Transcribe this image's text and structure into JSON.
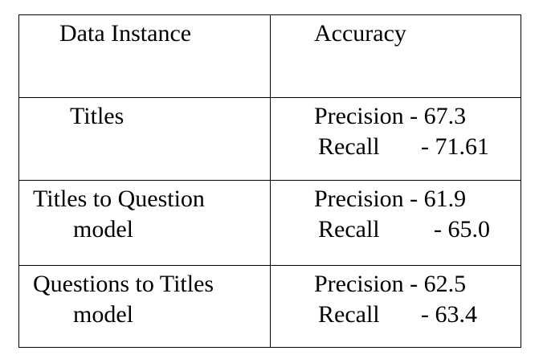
{
  "table": {
    "headers": [
      "Data Instance",
      "Accuracy"
    ],
    "rows": [
      {
        "instance_lines": [
          "Titles"
        ],
        "precision_label": "Precision - 67.3",
        "recall_label": "Recall",
        "recall_value": "- 71.61"
      },
      {
        "instance_lines": [
          "Titles to Question",
          "model"
        ],
        "precision_label": "Precision - 61.9",
        "recall_label": "Recall",
        "recall_value": "- 65.0"
      },
      {
        "instance_lines": [
          "Questions to Titles",
          "model"
        ],
        "precision_label": "Precision - 62.5",
        "recall_label": "Recall",
        "recall_value": "- 63.4"
      }
    ]
  }
}
